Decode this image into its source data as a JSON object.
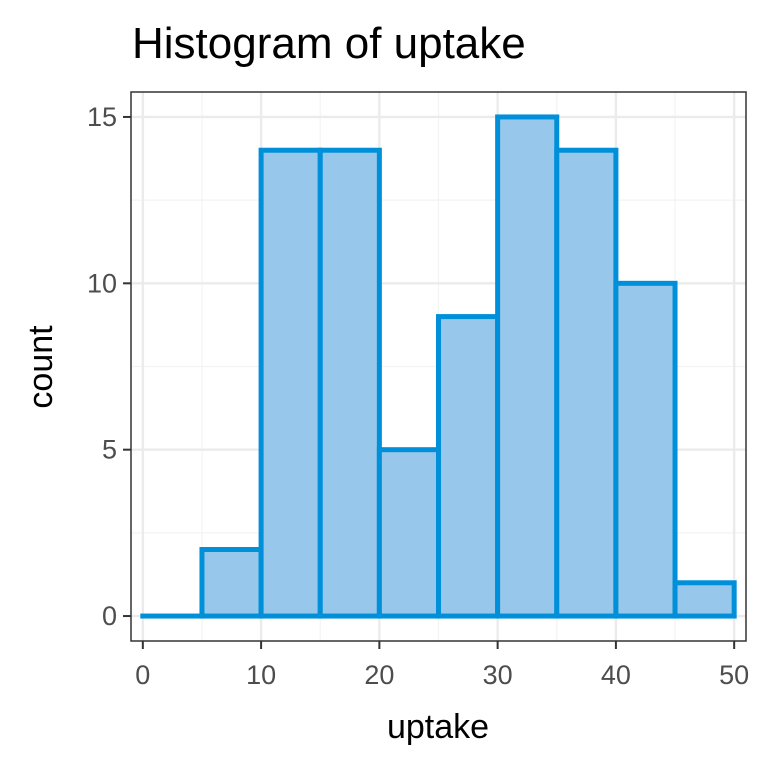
{
  "chart_data": {
    "type": "bar",
    "title": "Histogram of uptake",
    "xlabel": "uptake",
    "ylabel": "count",
    "bin_width": 5,
    "bin_starts": [
      0,
      5,
      10,
      15,
      20,
      25,
      30,
      35,
      40,
      45
    ],
    "values": [
      0,
      2,
      14,
      14,
      5,
      9,
      15,
      14,
      10,
      1
    ],
    "xlim": [
      -1,
      51
    ],
    "ylim": [
      -0.75,
      15.75
    ],
    "x_ticks": [
      "0",
      "10",
      "20",
      "30",
      "40",
      "50"
    ],
    "y_ticks": [
      "0",
      "5",
      "10",
      "15"
    ],
    "grid": true,
    "bar_fill": "#97c8ec",
    "bar_stroke": "#0090d9"
  }
}
